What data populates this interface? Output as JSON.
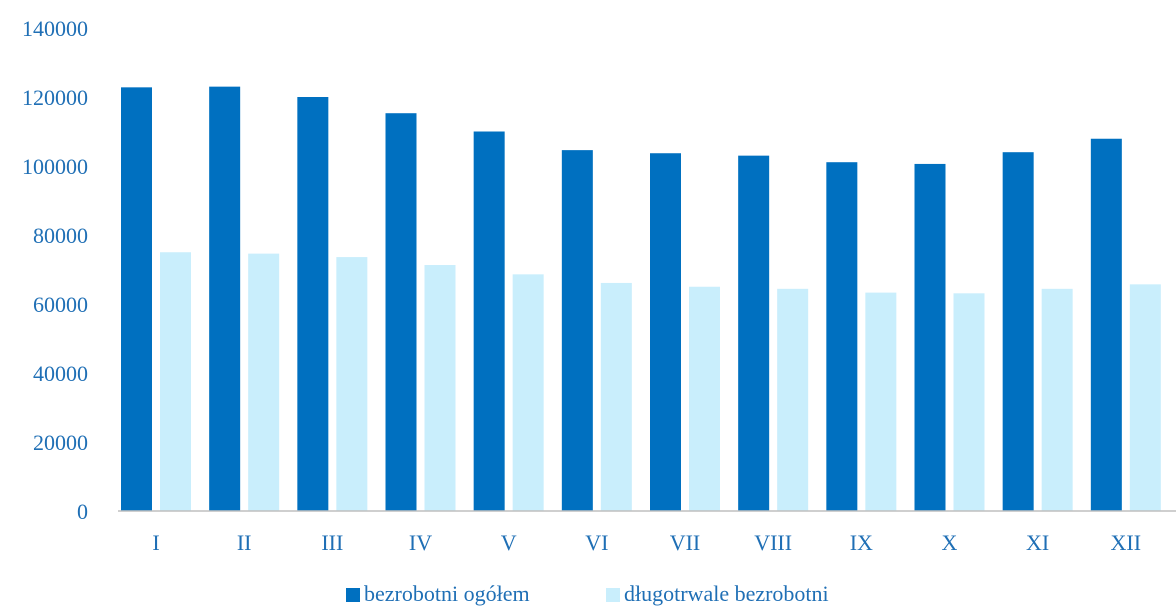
{
  "chart_data": {
    "type": "bar",
    "categories": [
      "I",
      "II",
      "III",
      "IV",
      "V",
      "VI",
      "VII",
      "VIII",
      "IX",
      "X",
      "XI",
      "XII"
    ],
    "series": [
      {
        "name": "bezrobotni ogółem",
        "color": "#0070c0",
        "values": [
          122800,
          123000,
          120000,
          115300,
          110000,
          104600,
          103700,
          103000,
          101100,
          100600,
          104000,
          107900
        ]
      },
      {
        "name": "długotrwale bezrobotni",
        "color": "#c9eefc",
        "values": [
          75000,
          74600,
          73600,
          71300,
          68600,
          66100,
          65000,
          64400,
          63300,
          63100,
          64400,
          65700
        ]
      }
    ],
    "ylim": [
      0,
      140000
    ],
    "yticks": [
      0,
      20000,
      40000,
      60000,
      80000,
      100000,
      120000,
      140000
    ],
    "grid": false,
    "legend_position": "bottom-center",
    "text_color": "#1f6fb5"
  }
}
